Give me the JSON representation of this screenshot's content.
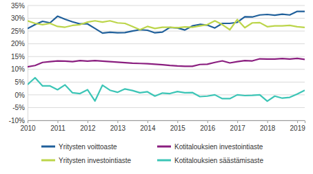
{
  "chart_data": {
    "type": "line",
    "categories": [
      "2010",
      null,
      null,
      null,
      "2011",
      null,
      null,
      null,
      "2012",
      null,
      null,
      null,
      "2013",
      null,
      null,
      null,
      "2014",
      null,
      null,
      null,
      "2015",
      null,
      null,
      null,
      "2016",
      null,
      null,
      null,
      "2017",
      null,
      null,
      null,
      "2018",
      null,
      null,
      null,
      "2019",
      null
    ],
    "series": [
      {
        "name": "Yritysten voittoaste",
        "color": "#1f5f9a",
        "values": [
          26,
          27.5,
          28.8,
          28.2,
          30.8,
          29.6,
          28.6,
          27.8,
          27.8,
          26,
          24.2,
          24.5,
          24.3,
          24.4,
          25,
          25.5,
          25.3,
          24.3,
          24.6,
          26.4,
          26.2,
          25.4,
          27,
          27.6,
          27.3,
          26.2,
          28,
          28,
          28.4,
          30.6,
          30.5,
          31.3,
          31.5,
          31.2,
          31.6,
          31.3,
          32.7,
          32.7
        ]
      },
      {
        "name": "Kotitalouksien investointiaste",
        "color": "#8a1e7f",
        "values": [
          11,
          11.5,
          12.7,
          13,
          13.3,
          13.2,
          13,
          13.4,
          13.2,
          13.4,
          13.2,
          13,
          12.8,
          12.6,
          12.4,
          12.3,
          12.2,
          12,
          11.8,
          11.5,
          11.3,
          11.2,
          11.2,
          11.9,
          12,
          12.7,
          13.3,
          12.5,
          13,
          13.4,
          13.3,
          14.1,
          14,
          14,
          14.2,
          14,
          14.3,
          13.9
        ]
      },
      {
        "name": "Yritysten investointiaste",
        "color": "#bcd54a",
        "values": [
          29,
          28,
          27.5,
          28,
          26.8,
          26.5,
          27.2,
          27.5,
          28.5,
          29,
          28.5,
          29,
          28.2,
          28,
          26.8,
          25.5,
          26.8,
          26,
          26.5,
          26.5,
          26.3,
          26.6,
          26.5,
          27,
          27.5,
          29,
          27.5,
          25.5,
          29.5,
          26.3,
          28.2,
          28.3,
          26.7,
          27,
          27,
          27.2,
          26.7,
          26.4
        ]
      },
      {
        "name": "Kotitalouksien säästämisaste",
        "color": "#3cc5b6",
        "values": [
          4,
          6.7,
          3.5,
          3.5,
          2,
          3.9,
          0.8,
          0.5,
          2,
          -2.4,
          3.8,
          1.8,
          1,
          2.3,
          1.7,
          0.8,
          1.2,
          -0.5,
          0.7,
          0.5,
          1.3,
          0.8,
          0.9,
          -0.7,
          -0.5,
          0,
          -1.5,
          -1.5,
          0,
          -0.3,
          -0.2,
          0,
          -2.5,
          -0.5,
          -1.3,
          -1,
          0.3,
          1.8
        ]
      }
    ],
    "ylim": [
      -10,
      35
    ],
    "yticks": [
      {
        "value": -10,
        "label": "-10%"
      },
      {
        "value": -5,
        "label": "-5%"
      },
      {
        "value": 0,
        "label": "0%"
      },
      {
        "value": 5,
        "label": "5%"
      },
      {
        "value": 10,
        "label": "10%"
      },
      {
        "value": 15,
        "label": "15%"
      },
      {
        "value": 20,
        "label": "20%"
      },
      {
        "value": 25,
        "label": "25%"
      },
      {
        "value": 30,
        "label": "30%"
      },
      {
        "value": 35,
        "label": "35%"
      }
    ],
    "grid": true,
    "legend": "bottom"
  }
}
